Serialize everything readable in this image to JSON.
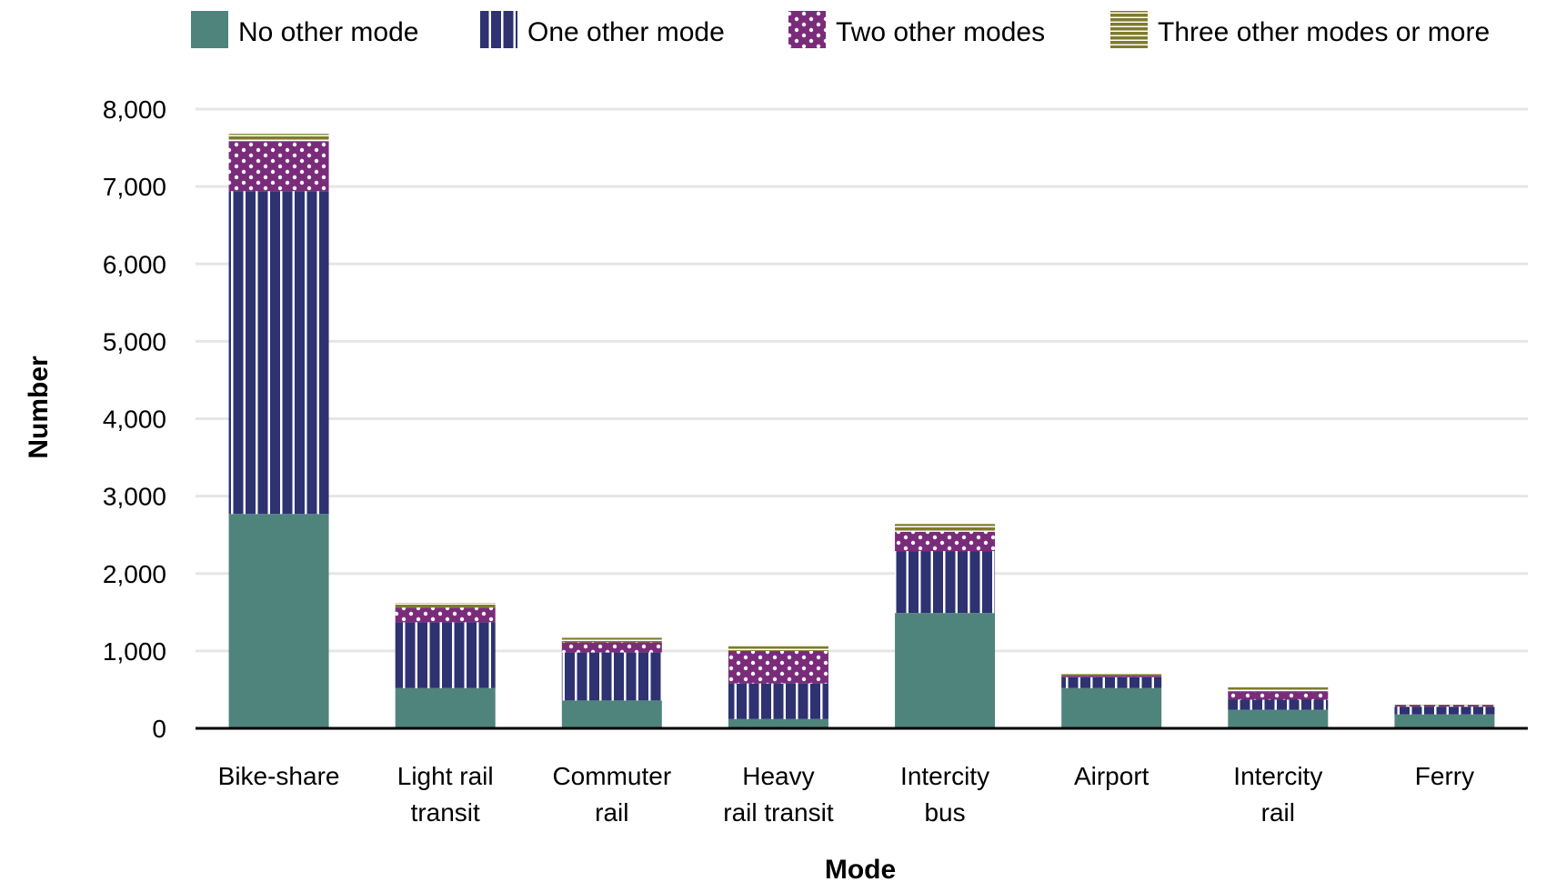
{
  "chart_data": {
    "type": "bar",
    "stacked": true,
    "xlabel": "Mode",
    "ylabel": "Number",
    "ylim": [
      0,
      8000
    ],
    "yticks": [
      "0",
      "1,000",
      "2,000",
      "3,000",
      "4,000",
      "5,000",
      "6,000",
      "7,000",
      "8,000"
    ],
    "ytick_values": [
      0,
      1000,
      2000,
      3000,
      4000,
      5000,
      6000,
      7000,
      8000
    ],
    "grid": "horizontal",
    "legend_position": "top",
    "categories": [
      [
        "Bike-share"
      ],
      [
        "Light rail",
        "transit"
      ],
      [
        "Commuter",
        "rail"
      ],
      [
        "Heavy",
        "rail transit"
      ],
      [
        "Intercity",
        "bus"
      ],
      [
        "Airport"
      ],
      [
        "Intercity",
        "rail"
      ],
      [
        "Ferry"
      ]
    ],
    "series": [
      {
        "name": "No other mode",
        "color": "#4f847c",
        "pattern": "solid",
        "values": [
          2770,
          520,
          360,
          120,
          1490,
          520,
          240,
          180
        ]
      },
      {
        "name": "One other mode",
        "color": "#2e3271",
        "pattern": "vertical-lines",
        "values": [
          4170,
          850,
          620,
          460,
          800,
          140,
          130,
          100
        ]
      },
      {
        "name": "Two other modes",
        "color": "#7a2c7b",
        "pattern": "dots",
        "values": [
          640,
          190,
          130,
          420,
          250,
          20,
          100,
          20
        ]
      },
      {
        "name": "Three other modes or more",
        "color": "#7e7b2c",
        "pattern": "horizontal-lines",
        "values": [
          100,
          60,
          60,
          60,
          100,
          20,
          60,
          20
        ]
      }
    ]
  }
}
